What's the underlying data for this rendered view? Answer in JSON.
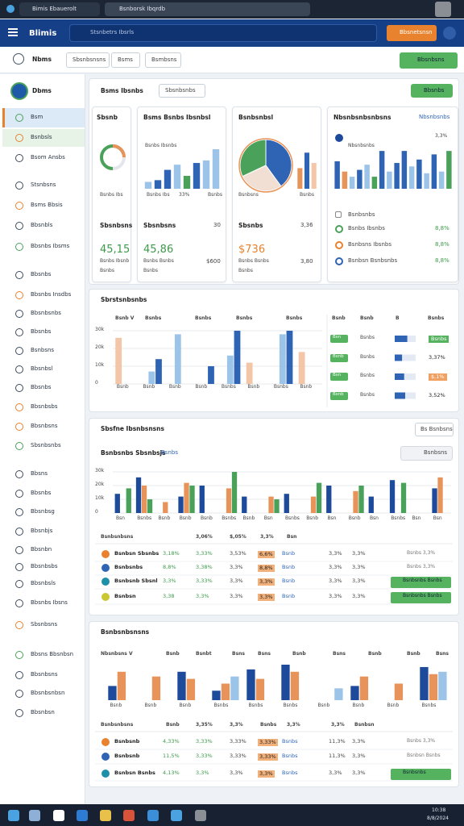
{
  "browser": {
    "tabs": [
      "Bimis Ebauerolt",
      "Bsnborsk Ibqrdb"
    ]
  },
  "header": {
    "app": "Blimis",
    "search": "Stsnbetrs Ibsrls",
    "button": "Bbsnetsnsn"
  },
  "toolbar": {
    "title": "Nbms",
    "buttons": [
      "Sbsnbsnsns",
      "Bsms",
      "Bsmbsns"
    ],
    "action": "Bbsnbsns"
  },
  "sidebar": {
    "brand": "Dbms",
    "items": [
      "Bsm",
      "Bsnbsls",
      "Bsom Ansbs",
      "Stsnbsns",
      "Bsms Bbsis",
      "Bbsnbls",
      "Bbsnbs Ibsms",
      "Bbsnbs",
      "Bbsnbs Insdbs",
      "Bbsnbsnbs",
      "Bbsnbs",
      "Bsnbsns",
      "Bbsnbsl",
      "Bbsnbs",
      "Bbsnbsbs",
      "Bbsnbsns",
      "Sbsnbsnbs",
      "Bbsns",
      "Bbsnbs",
      "Bbsnbsg",
      "Bbsnbjs",
      "Bbsnbn",
      "Bbsnbsbs",
      "Bbsnbsls",
      "Bbsnbs Ibsns",
      "Sbsnbsns",
      "Bbsns Bbsnbsn",
      "Bbsnbsns",
      "Bbsnbsnbsn",
      "Bbsnbsn"
    ]
  },
  "overview": {
    "title": "Bsms Ibsnbs",
    "filter": "Sbsnbsnbs",
    "action": "Bbsnbs",
    "cards": [
      {
        "title": "Sbsnb",
        "donut": 70,
        "caption": "Bsnbs Ibs",
        "label": "Sbsnbsns",
        "value": "45,15",
        "notes": [
          "Bsnbs Ibsnb",
          "Bsnbs"
        ]
      },
      {
        "title": "Bsms Bsnbs Ibsnbsl",
        "chart_label": "Bsnbs Ibsnbs",
        "bars": [
          8,
          10,
          22,
          28,
          15,
          30,
          33,
          46
        ],
        "colors": [
          "#9cc3e8",
          "#2f64b5",
          "#2f64b5",
          "#9cc3e8",
          "#4aa15a",
          "#2f64b5",
          "#9cc3e8",
          "#9cc3e8"
        ],
        "axis": [
          "Bsnbs Ibs",
          "33%",
          "Bsnbs"
        ],
        "label": "Sbsnbsns",
        "label_value": "30",
        "value": "45,86",
        "notes": [
          "Bsnbs Bsnbs",
          "Bsnbs"
        ],
        "note_value": "$600"
      },
      {
        "title": "Bsnbsnbsl",
        "pie": [
          40,
          28,
          32
        ],
        "pie_colors": [
          "#2f64b5",
          "#f1dfd4",
          "#4aa15a"
        ],
        "bars": [
          24,
          42,
          30
        ],
        "colors": [
          "#e8935a",
          "#2f64b5",
          "#f4c6a8"
        ],
        "axis": [
          "Bsnbsns",
          "Bsnbs"
        ],
        "label": "Sbsnbs",
        "label_value": "3,36",
        "value": "$736",
        "notes": [
          "Bsnbs Bsnbs",
          "Bsnbs"
        ],
        "note_value": "3,80"
      },
      {
        "title": "Nbsnbsnbsnbsns",
        "link": "Nbsnbsnbs",
        "chart_label": "Nbsnbsnbs",
        "chart_value": "3,3%",
        "bars": [
          32,
          20,
          14,
          22,
          28,
          14,
          44,
          20,
          30,
          44,
          26,
          34,
          18,
          40,
          20,
          44
        ],
        "colors": [
          "#2f64b5",
          "#e8935a",
          "#9cc3e8",
          "#2f64b5",
          "#9cc3e8",
          "#4aa15a",
          "#2f64b5",
          "#9cc3e8",
          "#2f64b5",
          "#2f64b5",
          "#9cc3e8",
          "#2f64b5",
          "#9cc3e8",
          "#2f64b5",
          "#9cc3e8",
          "#4aa15a"
        ],
        "list_title": "Bsnbsnbs",
        "rows": [
          [
            "Bsnbs Ibsnbs",
            "8,8%"
          ],
          [
            "Bsnbsns Ibsnbs",
            "8,8%"
          ],
          [
            "Bsnbsn Bsnbsnbs",
            "8,8%"
          ]
        ]
      }
    ]
  },
  "revenue": {
    "title": "Sbrstsnbsnbs",
    "headers": [
      "Bsnb V",
      "Bsnbs",
      "Bsnbs",
      "Bsnbs",
      "Bsnbs"
    ],
    "ylim": [
      0,
      30
    ],
    "yticks": [
      {
        "value": 30,
        "label": "30k"
      },
      {
        "value": 20,
        "label": "20k"
      },
      {
        "value": 10,
        "label": "10k"
      },
      0
    ],
    "categories": [
      "Bsnb",
      "Bsnb",
      "Bsnb",
      "Bsnb",
      "Bsnbs",
      "Bsnb",
      "Bsnbs",
      "Bsnb"
    ],
    "series": [
      {
        "color": "#f4c6a8",
        "values": [
          26,
          0,
          0,
          0,
          0,
          12,
          0,
          18
        ]
      },
      {
        "color": "#9cc3e8",
        "values": [
          0,
          7,
          28,
          0,
          16,
          0,
          28,
          0
        ]
      },
      {
        "color": "#2f64b5",
        "values": [
          0,
          14,
          0,
          10,
          30,
          0,
          30,
          0
        ]
      }
    ],
    "table": {
      "headers": [
        "Bsnb",
        "Bsnb",
        "B",
        "Bsnbs"
      ],
      "rows": [
        {
          "tag": "Bsn",
          "label": "Bsnbs",
          "progress": 60,
          "value": "Bsnbs"
        },
        {
          "tag": "Bsnb",
          "label": "Bsnbs",
          "progress": 35,
          "value": "3,37%"
        },
        {
          "tag": "Bsn",
          "label": "Bsnbs",
          "progress": 45,
          "value": "$,1%"
        },
        {
          "tag": "Bsnb",
          "label": "Bsnbs",
          "progress": 50,
          "value": "3,52%"
        }
      ]
    }
  },
  "performance": {
    "title": "Sbsfne Ibsnbsnsns",
    "button": "Bs Bsnbsns",
    "subtitle": "Bsnbsnbs Sbsnbsjs",
    "link": "Bsnbs",
    "select": "Bsnbsns",
    "ylim": [
      0,
      30
    ],
    "yticks": [
      {
        "value": 30,
        "label": "30k"
      },
      {
        "value": 20,
        "label": "20k"
      },
      {
        "value": 10,
        "label": "10k"
      },
      0
    ],
    "categories": [
      "Bsn",
      "Bsnbs",
      "Bsnb",
      "Bsnb",
      "Bsnb",
      "Bsnbs",
      "Bsnb",
      "Bsn",
      "Bsnbs",
      "Bsnb",
      "Bsn",
      "Bsnb",
      "Bsn",
      "Bsnbs",
      "Bsn",
      "Bsn"
    ],
    "series": [
      {
        "color": "#1d4a9a",
        "values": [
          14,
          26,
          0,
          12,
          20,
          0,
          12,
          0,
          14,
          0,
          20,
          0,
          12,
          24,
          0,
          18
        ]
      },
      {
        "color": "#e8935a",
        "values": [
          0,
          20,
          8,
          22,
          0,
          18,
          0,
          12,
          0,
          12,
          0,
          16,
          0,
          0,
          0,
          26
        ]
      },
      {
        "color": "#4aa15a",
        "values": [
          18,
          10,
          0,
          20,
          0,
          30,
          0,
          10,
          0,
          22,
          0,
          20,
          0,
          22,
          0,
          0
        ]
      }
    ],
    "table": {
      "headers": [
        "Bsnbsnbsns",
        "3,06%",
        "$,05%",
        "3,3%",
        "Bsn"
      ],
      "rows": [
        [
          "Bsnbsn Sbsnbs",
          "3,18%",
          "3,33%",
          "3,53%",
          "6,6%",
          "Bsnb",
          "3,3%",
          "3,3%",
          "Bsnbs 3,3%"
        ],
        [
          "Bsnbsnbs",
          "8,8%",
          "3,38%",
          "3,3%",
          "8,8%",
          "Bsnb",
          "3,3%",
          "3,3%",
          "Bsnbs 3,3%"
        ],
        [
          "Bsnbsnb Sbsnl",
          "3,3%",
          "3,33%",
          "3,3%",
          "3,3%",
          "Bsnb",
          "3,3%",
          "3,3%",
          "Bsnbsnbs Bsnbs"
        ],
        [
          "Bsnbsn",
          "3,38",
          "3,3%",
          "3,3%",
          "3,3%",
          "Bsnb",
          "3,3%",
          "3,3%",
          "Bsnbsnbs Bsnbs"
        ]
      ]
    }
  },
  "summary": {
    "title": "Bsnbsnbsnsns",
    "headers": [
      "Nbsnbsns V",
      "Bsnb",
      "Bsnbt",
      "Bsns",
      "Bsns",
      "Bsnb",
      "Bsns",
      "Bsnb",
      "Bsnb",
      "Bsns"
    ],
    "ylim": [
      0,
      30
    ],
    "categories": [
      "Bsnb",
      "Bsnb",
      "Bsnb",
      "Bsnbs",
      "Bsnbs",
      "Bsnbs",
      "Bsnb",
      "Bsnb",
      "Bsnb",
      "Bsnbs"
    ],
    "series": [
      {
        "color": "#1d4a9a",
        "values": [
          12,
          0,
          24,
          8,
          26,
          30,
          0,
          12,
          0,
          28
        ]
      },
      {
        "color": "#e8935a",
        "values": [
          24,
          20,
          18,
          14,
          18,
          24,
          0,
          20,
          14,
          22
        ]
      },
      {
        "color": "#9cc3e8",
        "values": [
          0,
          0,
          0,
          20,
          0,
          0,
          10,
          0,
          0,
          24
        ]
      }
    ],
    "table": {
      "headers": [
        "Bsnbsnbsns",
        "Bsnb",
        "3,35%",
        "3,3%",
        "Bsnbs",
        "3,3%",
        "3,3%",
        "Bsnbsn"
      ],
      "rows": [
        [
          "Bsnbsnb",
          "4,33%",
          "3,33%",
          "3,33%",
          "3,33%",
          "Bsnbs",
          "11,3%",
          "3,3%",
          "Bsnbs 3,3%"
        ],
        [
          "Bsnbsnb",
          "11,5%",
          "3,33%",
          "3,33%",
          "3,33%",
          "Bsnbs",
          "11,3%",
          "3,3%",
          "Bsnbsn Bsnbs"
        ],
        [
          "Bsnbsn Bsnbs",
          "4,13%",
          "3,3%",
          "3,3%",
          "3,3%",
          "Bsnbs",
          "3,3%",
          "3,3%",
          "Bsnbsnbs"
        ]
      ]
    }
  },
  "taskbar": {
    "tray": [
      "10:38",
      "8/8/2024"
    ]
  }
}
